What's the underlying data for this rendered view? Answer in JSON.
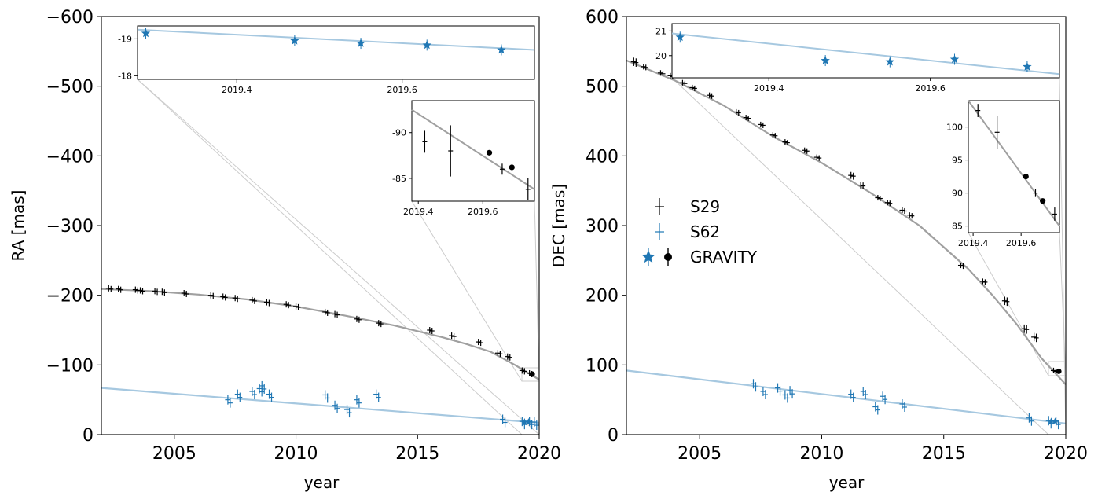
{
  "figure": {
    "colors": {
      "s29": "#000000",
      "s62": "#1f77b4",
      "s29_orbit": "#a0a0a0",
      "s62_orbit": "#a6c8e0",
      "connector": "#cccccc"
    },
    "legend": {
      "placement": "left, right panel",
      "entries": [
        {
          "label": "S29",
          "marker": "errorbar-cross",
          "color": "#000000"
        },
        {
          "label": "S62",
          "marker": "errorbar-cross",
          "color": "#1f77b4"
        },
        {
          "label": "GRAVITY",
          "marker": "star (S62) + dot (S29)",
          "color": "#1f77b4/#000000"
        }
      ]
    }
  },
  "chart_data": [
    {
      "type": "scatter",
      "panel": "left",
      "xlabel": "year",
      "ylabel": "RA [mas]",
      "xlim": [
        2002,
        2020
      ],
      "ylim": [
        0,
        -600
      ],
      "y_inverted": true,
      "xticks": [
        "2005",
        "2010",
        "2015",
        "2020"
      ],
      "yticks": [
        "0",
        "−100",
        "−200",
        "−300",
        "−400",
        "−500",
        "−600"
      ],
      "series": [
        {
          "name": "S29",
          "kind": "astrometry",
          "x": [
            2002.3,
            2002.7,
            2003.4,
            2003.6,
            2004.2,
            2004.5,
            2005.4,
            2006.5,
            2007.0,
            2007.5,
            2008.2,
            2008.8,
            2009.6,
            2010.0,
            2011.2,
            2011.6,
            2012.5,
            2013.4,
            2015.5,
            2016.4,
            2017.5,
            2018.3,
            2018.7,
            2019.3,
            2019.6
          ],
          "y": [
            -210,
            -209,
            -208,
            -207,
            -206,
            -205,
            -203,
            -200,
            -198,
            -196,
            -193,
            -190,
            -187,
            -184,
            -176,
            -173,
            -166,
            -160,
            -150,
            -142,
            -133,
            -117,
            -112,
            -92,
            -88
          ]
        },
        {
          "name": "S29 orbit",
          "kind": "line",
          "x": [
            2002,
            2004,
            2006,
            2008,
            2010,
            2012,
            2014,
            2016,
            2017,
            2018,
            2019,
            2020
          ],
          "y": [
            -209,
            -206,
            -201,
            -194,
            -184,
            -171,
            -157,
            -140,
            -130,
            -119,
            -100,
            -79
          ]
        },
        {
          "name": "S62",
          "kind": "astrometry",
          "x": [
            2007.2,
            2007.6,
            2008.2,
            2008.5,
            2008.6,
            2008.9,
            2011.2,
            2011.6,
            2012.1,
            2012.5,
            2013.3,
            2018.5,
            2019.3,
            2019.6,
            2019.8
          ],
          "y": [
            -50,
            -58,
            -62,
            -66,
            -70,
            -58,
            -57,
            -42,
            -36,
            -50,
            -58,
            -22,
            -19,
            -19,
            -18
          ]
        },
        {
          "name": "S62 orbit",
          "kind": "line",
          "x": [
            2002,
            2020
          ],
          "y": [
            -67,
            -17
          ]
        }
      ],
      "insets": [
        {
          "name": "S62 GRAVITY zoom",
          "xticks": [
            "2019.4",
            "2019.6"
          ],
          "yticks": [
            "-18",
            "-19"
          ],
          "xlim": [
            2019.28,
            2019.76
          ],
          "ylim": [
            -17.9,
            -19.35
          ],
          "stars": {
            "x": [
              2019.29,
              2019.47,
              2019.55,
              2019.63,
              2019.72
            ],
            "y": [
              -19.15,
              -18.95,
              -18.88,
              -18.83,
              -18.7
            ]
          },
          "orbit": {
            "x": [
              2019.28,
              2019.76
            ],
            "y": [
              -19.25,
              -18.7
            ]
          }
        },
        {
          "name": "S29 GRAVITY zoom",
          "xticks": [
            "2019.4",
            "2019.6"
          ],
          "yticks": [
            "-90",
            "-85"
          ],
          "xlim": [
            2019.38,
            2019.76
          ],
          "ylim": [
            -82.5,
            -93.5
          ],
          "crosses": {
            "x": [
              2019.42,
              2019.5,
              2019.66,
              2019.74
            ],
            "y": [
              -89,
              -88,
              -86,
              -83.8
            ],
            "yerr": [
              1.2,
              2.8,
              0.6,
              1.2
            ]
          },
          "dots": {
            "x": [
              2019.62,
              2019.69
            ],
            "y": [
              -87.8,
              -86.2
            ]
          },
          "orbit": {
            "x": [
              2019.38,
              2019.76
            ],
            "y": [
              -92.5,
              -83.8
            ]
          }
        }
      ]
    },
    {
      "type": "scatter",
      "panel": "right",
      "xlabel": "year",
      "ylabel": "DEC [mas]",
      "xlim": [
        2002,
        2020
      ],
      "ylim": [
        0,
        600
      ],
      "xticks": [
        "2005",
        "2010",
        "2015",
        "2020"
      ],
      "yticks": [
        "0",
        "100",
        "200",
        "300",
        "400",
        "500",
        "600"
      ],
      "series": [
        {
          "name": "S29",
          "kind": "astrometry",
          "x": [
            2002.3,
            2002.7,
            2003.4,
            2003.8,
            2004.3,
            2004.7,
            2005.4,
            2006.5,
            2006.9,
            2007.5,
            2008.0,
            2008.5,
            2009.3,
            2009.8,
            2011.2,
            2011.6,
            2012.3,
            2012.7,
            2013.3,
            2013.6,
            2015.7,
            2016.6,
            2017.5,
            2018.3,
            2018.7,
            2019.5
          ],
          "y": [
            535,
            528,
            519,
            515,
            505,
            498,
            487,
            463,
            455,
            445,
            430,
            420,
            408,
            398,
            372,
            358,
            340,
            333,
            322,
            315,
            243,
            220,
            192,
            152,
            140,
            92
          ],
          "yerr": [
            6,
            4,
            4,
            4,
            4,
            4,
            4,
            4,
            4,
            4,
            4,
            4,
            4,
            4,
            5,
            5,
            4,
            4,
            4,
            4,
            4,
            4,
            6,
            6,
            6,
            4
          ]
        },
        {
          "name": "S29 orbit",
          "kind": "line",
          "x": [
            2002,
            2004,
            2006,
            2008,
            2010,
            2012,
            2014,
            2016,
            2017,
            2018,
            2019,
            2020
          ],
          "y": [
            537,
            508,
            472,
            428,
            390,
            347,
            300,
            238,
            200,
            158,
            110,
            72
          ]
        },
        {
          "name": "S62",
          "kind": "astrometry",
          "x": [
            2007.2,
            2007.6,
            2008.2,
            2008.5,
            2008.7,
            2011.2,
            2011.7,
            2012.2,
            2012.5,
            2013.3,
            2018.5,
            2019.3,
            2019.6
          ],
          "y": [
            73,
            62,
            67,
            57,
            63,
            58,
            62,
            40,
            55,
            44,
            24,
            20,
            19
          ]
        },
        {
          "name": "S62 orbit",
          "kind": "line",
          "x": [
            2002,
            2020
          ],
          "y": [
            92,
            16
          ]
        }
      ],
      "insets": [
        {
          "name": "S62 GRAVITY zoom",
          "xticks": [
            "2019.4",
            "2019.6"
          ],
          "yticks": [
            "21",
            "20"
          ],
          "xlim": [
            2019.28,
            2019.76
          ],
          "ylim": [
            19.1,
            21.3
          ],
          "stars": {
            "x": [
              2019.29,
              2019.47,
              2019.55,
              2019.63,
              2019.72
            ],
            "y": [
              20.75,
              19.8,
              19.75,
              19.85,
              19.55
            ]
          },
          "orbit": {
            "x": [
              2019.28,
              2019.76
            ],
            "y": [
              20.9,
              19.25
            ]
          }
        },
        {
          "name": "S29 GRAVITY zoom",
          "xticks": [
            "2019.4",
            "2019.6"
          ],
          "yticks": [
            "100",
            "95",
            "90",
            "85"
          ],
          "xlim": [
            2019.38,
            2019.76
          ],
          "ylim": [
            84,
            104
          ],
          "crosses": {
            "x": [
              2019.42,
              2019.5,
              2019.66,
              2019.74
            ],
            "y": [
              102.5,
              99.2,
              90,
              86.8
            ],
            "yerr": [
              1,
              2.5,
              0.6,
              1
            ]
          },
          "dots": {
            "x": [
              2019.62,
              2019.69
            ],
            "y": [
              92.5,
              88.8
            ]
          },
          "orbit": {
            "x": [
              2019.38,
              2019.76
            ],
            "y": [
              104,
              85
            ]
          }
        }
      ]
    }
  ]
}
